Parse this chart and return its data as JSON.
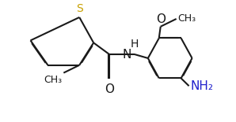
{
  "background_color": "#ffffff",
  "line_color": "#1a1a1a",
  "line_width": 1.5,
  "dbo": 0.007,
  "figsize": [
    2.98,
    1.55
  ],
  "dpi": 100,
  "S_color": "#c8a000",
  "O_color": "#cc0000",
  "NH2_color": "#2020cc",
  "text_color": "#1a1a1a",
  "xlim": [
    0,
    2.98
  ],
  "ylim": [
    0,
    1.55
  ]
}
